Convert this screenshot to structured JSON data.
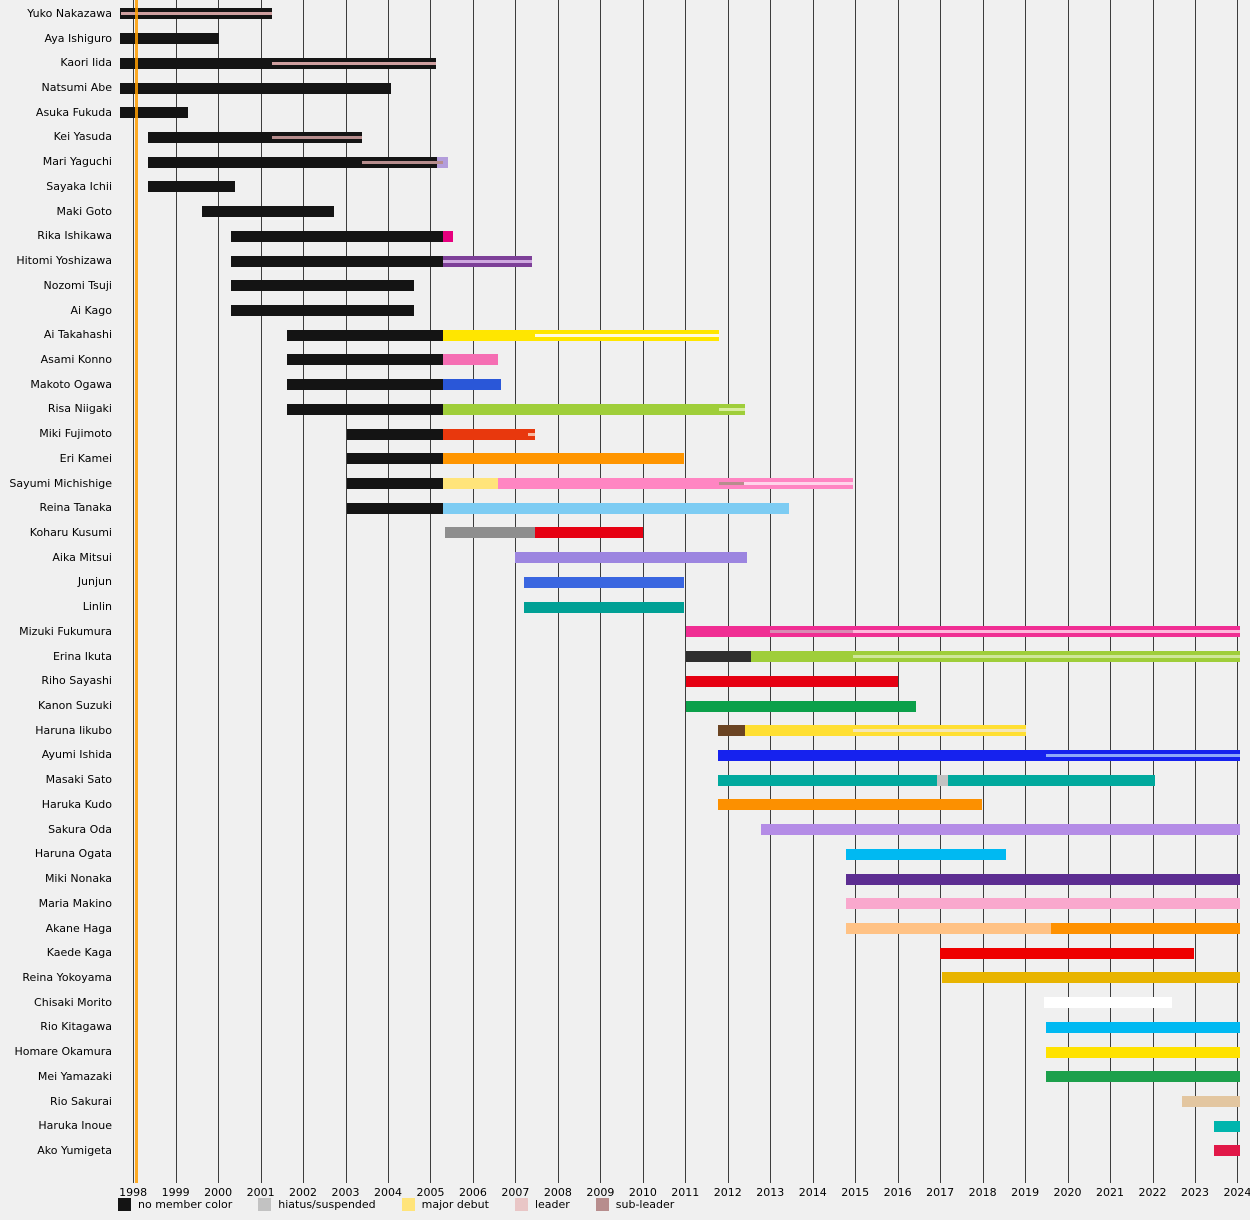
{
  "chart_data": {
    "type": "gantt",
    "description": "Member tenure timeline, one horizontal bar per member, 1998-2024",
    "x_axis": {
      "domain": [
        1997.69,
        2024.06
      ],
      "start_year": 1998,
      "end_year": 2024,
      "ticks": [
        1998,
        1999,
        2000,
        2001,
        2002,
        2003,
        2004,
        2005,
        2006,
        2007,
        2008,
        2009,
        2010,
        2011,
        2012,
        2013,
        2014,
        2015,
        2016,
        2017,
        2018,
        2019,
        2020,
        2021,
        2022,
        2023,
        2024
      ]
    },
    "major_debut_line": {
      "year": 1998.07,
      "color": "#ff9d00"
    },
    "legend": [
      {
        "label": "no member color",
        "color": "#141414"
      },
      {
        "label": "hiatus/suspended",
        "color": "#c2c2c2"
      },
      {
        "label": "major debut",
        "color": "#ffe47a"
      },
      {
        "label": "leader",
        "color": "#e9c6c6"
      },
      {
        "label": "sub-leader",
        "color": "#b78d8d"
      }
    ],
    "members": [
      {
        "name": "Yuko Nakazawa",
        "segments": [
          {
            "start": 1997.69,
            "end": 2001.28,
            "color": "#141414"
          }
        ],
        "overlays": [
          {
            "role": "leader",
            "start": 1997.72,
            "end": 2001.28,
            "color": "#cf9f9f"
          }
        ]
      },
      {
        "name": "Aya Ishiguro",
        "segments": [
          {
            "start": 1997.69,
            "end": 2000.02,
            "color": "#141414"
          }
        ],
        "overlays": []
      },
      {
        "name": "Kaori Iida",
        "segments": [
          {
            "start": 1997.69,
            "end": 2005.12,
            "color": "#141414"
          }
        ],
        "overlays": [
          {
            "role": "leader",
            "start": 2001.28,
            "end": 2005.12,
            "color": "#cf9f9f"
          }
        ]
      },
      {
        "name": "Natsumi Abe",
        "segments": [
          {
            "start": 1997.69,
            "end": 2004.07,
            "color": "#141414"
          }
        ],
        "overlays": []
      },
      {
        "name": "Asuka Fukuda",
        "segments": [
          {
            "start": 1997.69,
            "end": 1999.3,
            "color": "#141414"
          }
        ],
        "overlays": []
      },
      {
        "name": "Kei Yasuda",
        "segments": [
          {
            "start": 1998.35,
            "end": 2003.38,
            "color": "#141414"
          }
        ],
        "overlays": [
          {
            "role": "sub-leader",
            "start": 2001.28,
            "end": 2003.38,
            "color": "#b78d8d"
          }
        ]
      },
      {
        "name": "Mari Yaguchi",
        "segments": [
          {
            "start": 1998.35,
            "end": 2005.15,
            "color": "#141414"
          },
          {
            "start": 2005.15,
            "end": 2005.42,
            "color": "#b39ddb"
          }
        ],
        "overlays": [
          {
            "role": "sub-leader",
            "start": 2003.38,
            "end": 2005.3,
            "color": "#b78d8d"
          }
        ]
      },
      {
        "name": "Sayaka Ichii",
        "segments": [
          {
            "start": 1998.35,
            "end": 2000.4,
            "color": "#141414"
          }
        ],
        "overlays": []
      },
      {
        "name": "Maki Goto",
        "segments": [
          {
            "start": 1999.62,
            "end": 2002.73,
            "color": "#141414"
          }
        ],
        "overlays": []
      },
      {
        "name": "Rika Ishikawa",
        "segments": [
          {
            "start": 2000.3,
            "end": 2005.3,
            "color": "#141414"
          },
          {
            "start": 2005.3,
            "end": 2005.52,
            "color": "#e6007e"
          }
        ],
        "overlays": []
      },
      {
        "name": "Hitomi Yoshizawa",
        "segments": [
          {
            "start": 2000.3,
            "end": 2005.3,
            "color": "#141414"
          },
          {
            "start": 2005.3,
            "end": 2007.38,
            "color": "#7d3f98"
          }
        ],
        "overlays": [
          {
            "role": "leader",
            "start": 2005.3,
            "end": 2007.38,
            "color": "#cfa8e0"
          }
        ]
      },
      {
        "name": "Nozomi Tsuji",
        "segments": [
          {
            "start": 2000.3,
            "end": 2004.62,
            "color": "#141414"
          }
        ],
        "overlays": []
      },
      {
        "name": "Ai Kago",
        "segments": [
          {
            "start": 2000.3,
            "end": 2004.62,
            "color": "#141414"
          }
        ],
        "overlays": []
      },
      {
        "name": "Ai Takahashi",
        "segments": [
          {
            "start": 2001.62,
            "end": 2005.3,
            "color": "#141414"
          },
          {
            "start": 2005.3,
            "end": 2011.8,
            "color": "#ffe600"
          }
        ],
        "overlays": [
          {
            "role": "leader",
            "start": 2007.45,
            "end": 2011.8,
            "color": "#fffbe0"
          }
        ]
      },
      {
        "name": "Asami Konno",
        "segments": [
          {
            "start": 2001.62,
            "end": 2005.3,
            "color": "#141414"
          },
          {
            "start": 2005.3,
            "end": 2006.58,
            "color": "#f56eb3"
          }
        ],
        "overlays": []
      },
      {
        "name": "Makoto Ogawa",
        "segments": [
          {
            "start": 2001.62,
            "end": 2005.3,
            "color": "#141414"
          },
          {
            "start": 2005.3,
            "end": 2006.65,
            "color": "#2a57d8"
          }
        ],
        "overlays": []
      },
      {
        "name": "Risa Niigaki",
        "segments": [
          {
            "start": 2001.62,
            "end": 2005.3,
            "color": "#141414"
          },
          {
            "start": 2005.3,
            "end": 2012.4,
            "color": "#9fce3a"
          }
        ],
        "overlays": [
          {
            "role": "leader",
            "start": 2011.8,
            "end": 2012.4,
            "color": "#d8eda0"
          }
        ]
      },
      {
        "name": "Miki Fujimoto",
        "segments": [
          {
            "start": 2003.03,
            "end": 2005.3,
            "color": "#141414"
          },
          {
            "start": 2005.3,
            "end": 2007.46,
            "color": "#e8380d"
          }
        ],
        "overlays": [
          {
            "role": "leader",
            "start": 2007.3,
            "end": 2007.46,
            "color": "#f8b8a0"
          }
        ]
      },
      {
        "name": "Eri Kamei",
        "segments": [
          {
            "start": 2003.03,
            "end": 2005.3,
            "color": "#141414"
          },
          {
            "start": 2005.3,
            "end": 2010.96,
            "color": "#ff9500"
          }
        ],
        "overlays": []
      },
      {
        "name": "Sayumi Michishige",
        "segments": [
          {
            "start": 2003.03,
            "end": 2005.3,
            "color": "#141414"
          },
          {
            "start": 2005.3,
            "end": 2006.6,
            "color": "#ffe47a"
          },
          {
            "start": 2006.6,
            "end": 2014.95,
            "color": "#ff85c2"
          }
        ],
        "overlays": [
          {
            "role": "sub-leader",
            "start": 2011.8,
            "end": 2012.38,
            "color": "#b78d8d"
          },
          {
            "role": "leader",
            "start": 2012.38,
            "end": 2014.95,
            "color": "#ffd5ea"
          }
        ]
      },
      {
        "name": "Reina Tanaka",
        "segments": [
          {
            "start": 2003.03,
            "end": 2005.3,
            "color": "#141414"
          },
          {
            "start": 2005.3,
            "end": 2013.45,
            "color": "#7dccf3"
          }
        ],
        "overlays": []
      },
      {
        "name": "Koharu Kusumi",
        "segments": [
          {
            "start": 2005.35,
            "end": 2007.46,
            "color": "#8e8e8e"
          },
          {
            "start": 2007.46,
            "end": 2010.0,
            "color": "#e60012"
          }
        ],
        "overlays": []
      },
      {
        "name": "Aika Mitsui",
        "segments": [
          {
            "start": 2007.0,
            "end": 2012.45,
            "color": "#9c85e0"
          }
        ],
        "overlays": []
      },
      {
        "name": "Junjun",
        "segments": [
          {
            "start": 2007.21,
            "end": 2010.96,
            "color": "#3a66e0"
          }
        ],
        "overlays": []
      },
      {
        "name": "Linlin",
        "segments": [
          {
            "start": 2007.21,
            "end": 2010.96,
            "color": "#00a095"
          }
        ],
        "overlays": []
      },
      {
        "name": "Mizuki Fukumura",
        "segments": [
          {
            "start": 2011.02,
            "end": 2024.06,
            "color": "#f02e93"
          }
        ],
        "overlays": [
          {
            "role": "sub-leader",
            "start": 2013.0,
            "end": 2014.95,
            "color": "#d98bb4"
          },
          {
            "role": "leader",
            "start": 2014.95,
            "end": 2024.06,
            "color": "#ffb8dc"
          }
        ]
      },
      {
        "name": "Erina Ikuta",
        "segments": [
          {
            "start": 2011.02,
            "end": 2012.54,
            "color": "#2e2e2e"
          },
          {
            "start": 2012.54,
            "end": 2024.06,
            "color": "#9fce3a"
          }
        ],
        "overlays": [
          {
            "role": "sub-leader",
            "start": 2014.95,
            "end": 2024.06,
            "color": "#cfe69a"
          }
        ]
      },
      {
        "name": "Riho Sayashi",
        "segments": [
          {
            "start": 2011.02,
            "end": 2016.0,
            "color": "#e60012"
          }
        ],
        "overlays": []
      },
      {
        "name": "Kanon Suzuki",
        "segments": [
          {
            "start": 2011.02,
            "end": 2016.42,
            "color": "#0ba04a"
          }
        ],
        "overlays": []
      },
      {
        "name": "Haruna Iikubo",
        "segments": [
          {
            "start": 2011.76,
            "end": 2012.4,
            "color": "#6b4423"
          },
          {
            "start": 2012.4,
            "end": 2019.03,
            "color": "#ffdf33"
          }
        ],
        "overlays": [
          {
            "role": "sub-leader",
            "start": 2014.95,
            "end": 2019.03,
            "color": "#f3e6b8"
          }
        ]
      },
      {
        "name": "Ayumi Ishida",
        "segments": [
          {
            "start": 2011.76,
            "end": 2024.06,
            "color": "#1622ee"
          }
        ],
        "overlays": [
          {
            "role": "sub-leader",
            "start": 2019.5,
            "end": 2024.06,
            "color": "#8fa8f8"
          }
        ]
      },
      {
        "name": "Masaki Sato",
        "segments": [
          {
            "start": 2011.76,
            "end": 2016.92,
            "color": "#00a99d"
          },
          {
            "start": 2016.92,
            "end": 2017.18,
            "color": "#c2c2c2"
          },
          {
            "start": 2017.18,
            "end": 2022.05,
            "color": "#00a99d"
          }
        ],
        "overlays": []
      },
      {
        "name": "Haruka Kudo",
        "segments": [
          {
            "start": 2011.76,
            "end": 2017.98,
            "color": "#fc9000"
          }
        ],
        "overlays": []
      },
      {
        "name": "Sakura Oda",
        "segments": [
          {
            "start": 2012.78,
            "end": 2024.06,
            "color": "#b48ce6"
          }
        ],
        "overlays": []
      },
      {
        "name": "Haruna Ogata",
        "segments": [
          {
            "start": 2014.78,
            "end": 2018.56,
            "color": "#00b9f2"
          }
        ],
        "overlays": []
      },
      {
        "name": "Miki Nonaka",
        "segments": [
          {
            "start": 2014.78,
            "end": 2024.06,
            "color": "#5c2d91"
          }
        ],
        "overlays": []
      },
      {
        "name": "Maria Makino",
        "segments": [
          {
            "start": 2014.78,
            "end": 2024.06,
            "color": "#f9a8cd"
          }
        ],
        "overlays": []
      },
      {
        "name": "Akane Haga",
        "segments": [
          {
            "start": 2014.78,
            "end": 2019.6,
            "color": "#ffc285"
          },
          {
            "start": 2019.6,
            "end": 2024.06,
            "color": "#ff9100"
          }
        ],
        "overlays": []
      },
      {
        "name": "Kaede Kaga",
        "segments": [
          {
            "start": 2017.0,
            "end": 2022.98,
            "color": "#ee0000"
          }
        ],
        "overlays": []
      },
      {
        "name": "Reina Yokoyama",
        "segments": [
          {
            "start": 2017.05,
            "end": 2024.06,
            "color": "#e8b400"
          }
        ],
        "overlays": []
      },
      {
        "name": "Chisaki Morito",
        "segments": [
          {
            "start": 2019.45,
            "end": 2022.47,
            "color": "#ffffff"
          }
        ],
        "overlays": []
      },
      {
        "name": "Rio Kitagawa",
        "segments": [
          {
            "start": 2019.5,
            "end": 2024.06,
            "color": "#00b9f2"
          }
        ],
        "overlays": []
      },
      {
        "name": "Homare Okamura",
        "segments": [
          {
            "start": 2019.5,
            "end": 2024.06,
            "color": "#ffe200"
          }
        ],
        "overlays": []
      },
      {
        "name": "Mei Yamazaki",
        "segments": [
          {
            "start": 2019.5,
            "end": 2024.06,
            "color": "#1ca04c"
          }
        ],
        "overlays": []
      },
      {
        "name": "Rio Sakurai",
        "segments": [
          {
            "start": 2022.7,
            "end": 2024.06,
            "color": "#e3c6a0"
          }
        ],
        "overlays": []
      },
      {
        "name": "Haruka Inoue",
        "segments": [
          {
            "start": 2023.45,
            "end": 2024.06,
            "color": "#00b5ad"
          }
        ],
        "overlays": []
      },
      {
        "name": "Ako Yumigeta",
        "segments": [
          {
            "start": 2023.45,
            "end": 2024.06,
            "color": "#e11848"
          }
        ],
        "overlays": []
      }
    ]
  }
}
